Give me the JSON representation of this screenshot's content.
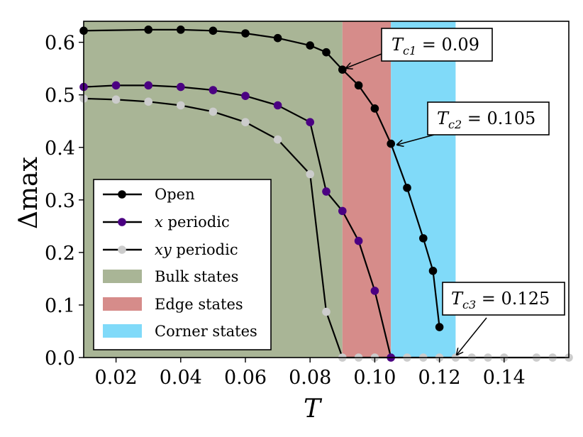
{
  "chart_data": {
    "type": "line",
    "title": "",
    "xlabel": "T",
    "ylabel": "Δmax",
    "xlim": [
      0.01,
      0.16
    ],
    "ylim": [
      0.0,
      0.64
    ],
    "xticks": [
      0.02,
      0.04,
      0.06,
      0.08,
      0.1,
      0.12,
      0.14
    ],
    "xtick_labels": [
      "0.02",
      "0.04",
      "0.06",
      "0.08",
      "0.10",
      "0.12",
      "0.14"
    ],
    "yticks": [
      0.0,
      0.1,
      0.2,
      0.3,
      0.4,
      0.5,
      0.6
    ],
    "ytick_labels": [
      "0.0",
      "0.1",
      "0.2",
      "0.3",
      "0.4",
      "0.5",
      "0.6"
    ],
    "grid": false,
    "legend_position": "lower-left",
    "regions": [
      {
        "name": "Bulk states",
        "x_start": 0.01,
        "x_end": 0.09,
        "color": "#a9b596"
      },
      {
        "name": "Edge states",
        "x_start": 0.09,
        "x_end": 0.105,
        "color": "#d68c8a"
      },
      {
        "name": "Corner states",
        "x_start": 0.105,
        "x_end": 0.125,
        "color": "#80daf9"
      }
    ],
    "series": [
      {
        "name": "Open",
        "color": "#000000",
        "x": [
          0.01,
          0.03,
          0.04,
          0.05,
          0.06,
          0.07,
          0.08,
          0.085,
          0.09,
          0.095,
          0.1,
          0.105,
          0.11,
          0.115,
          0.118,
          0.12
        ],
        "y": [
          0.622,
          0.624,
          0.624,
          0.622,
          0.617,
          0.608,
          0.594,
          0.581,
          0.548,
          0.518,
          0.474,
          0.407,
          0.323,
          0.227,
          0.165,
          0.058
        ]
      },
      {
        "name": "x periodic",
        "color": "#4b0082",
        "x": [
          0.01,
          0.02,
          0.03,
          0.04,
          0.05,
          0.06,
          0.07,
          0.08,
          0.085,
          0.09,
          0.095,
          0.1,
          0.105
        ],
        "y": [
          0.515,
          0.518,
          0.518,
          0.515,
          0.509,
          0.498,
          0.48,
          0.448,
          0.316,
          0.279,
          0.222,
          0.127,
          0.0
        ]
      },
      {
        "name": "xy periodic",
        "color": "#cccccc",
        "x": [
          0.01,
          0.02,
          0.03,
          0.04,
          0.05,
          0.06,
          0.07,
          0.08,
          0.085,
          0.09,
          0.095,
          0.1,
          0.11,
          0.115,
          0.12,
          0.125,
          0.13,
          0.135,
          0.14,
          0.15,
          0.155,
          0.16
        ],
        "y": [
          0.493,
          0.491,
          0.487,
          0.48,
          0.468,
          0.448,
          0.415,
          0.349,
          0.087,
          0.0,
          0.0,
          0.0,
          0.0,
          0.0,
          0.0,
          0.0,
          0.0,
          0.0,
          0.0,
          0.0,
          0.0,
          0.0
        ]
      }
    ],
    "annotations": [
      {
        "text": "T_{c1} = 0.09",
        "x": 0.09,
        "y": 0.548
      },
      {
        "text": "T_{c2} = 0.105",
        "x": 0.105,
        "y": 0.407
      },
      {
        "text": "T_{c3} = 0.125",
        "x": 0.125,
        "y": 0.0
      }
    ]
  },
  "legend": {
    "open": "Open",
    "x_periodic_var": "x",
    "x_periodic_rest": " periodic",
    "xy_periodic_var": "xy",
    "xy_periodic_rest": " periodic",
    "bulk": "Bulk states",
    "edge": "Edge states",
    "corner": "Corner states"
  },
  "annot": {
    "c1_T": "T",
    "c1_sub": "c1",
    "c1_val": " = 0.09",
    "c2_T": "T",
    "c2_sub": "c2",
    "c2_val": " = 0.105",
    "c3_T": "T",
    "c3_sub": "c3",
    "c3_val": " = 0.125"
  },
  "axis": {
    "x_title": "T",
    "y_title_delta": "Δ",
    "y_title_sub": "max"
  }
}
